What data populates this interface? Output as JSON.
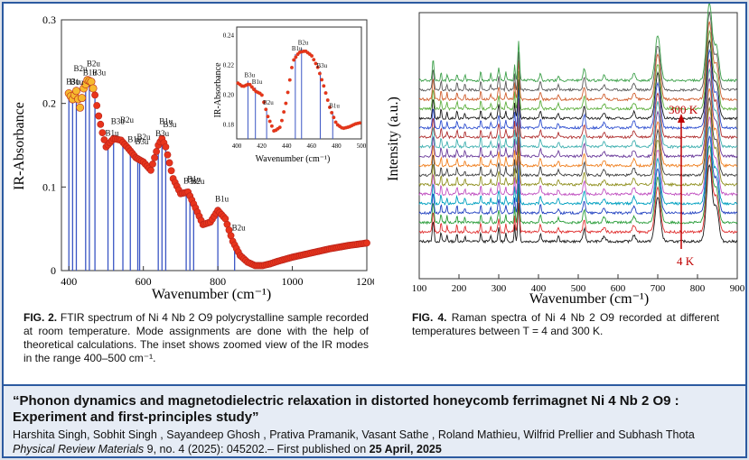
{
  "fig2": {
    "caption_label": "FIG. 2.",
    "caption_text": "FTIR spectrum of Ni 4 Nb 2 O9 polycrystalline sample recorded at room temperature. Mode assignments are done with the help of theoretical calculations. The inset shows zoomed view of the IR modes in the range 400–500 cm⁻¹.",
    "ylabel": "IR-Absorbance",
    "xlabel": "Wavenumber (cm⁻¹)",
    "yticks": [
      "0",
      "0.1",
      "0.2",
      "0.3"
    ],
    "xticks": [
      "400",
      "600",
      "800",
      "1000",
      "1200"
    ],
    "mode_labels": [
      "B3u",
      "B1u",
      "B2u",
      "B1u",
      "B2u",
      "B3u",
      "B1u",
      "B3u",
      "B2u",
      "B1u",
      "B3u",
      "B2u",
      "B3u",
      "B1u",
      "B3u",
      "B3u",
      "B1u",
      "B2u",
      "B1u",
      "B2u"
    ],
    "inset": {
      "ylabel": "IR-Absorbance",
      "xlabel": "Wavenumber (cm⁻¹)",
      "yticks": [
        "0.18",
        "0.20",
        "0.22",
        "0.24"
      ],
      "xticks": [
        "400",
        "420",
        "440",
        "460",
        "480",
        "500"
      ],
      "mode_labels": [
        "B3u",
        "B1u",
        "B2u",
        "B1u",
        "B2u",
        "B3u",
        "B1u"
      ]
    }
  },
  "fig4": {
    "caption_label": "FIG. 4.",
    "caption_text": "Raman spectra of Ni 4 Nb 2 O9 recorded at different temperatures between T = 4 and 300 K.",
    "ylabel": "Intensity (a.u.)",
    "xlabel": "Wavenumber (cm⁻¹)",
    "xticks": [
      "100",
      "200",
      "300",
      "400",
      "500",
      "600",
      "700",
      "800",
      "900"
    ],
    "label_high": "300 K",
    "label_low": "4 K"
  },
  "reference": {
    "title": "“Phonon dynamics and magnetodielectric relaxation in distorted honeycomb ferrimagnet Ni 4 Nb 2 O9 : Experiment and first-principles  study”",
    "authors": "Harshita Singh, Sobhit Singh , Sayandeep Ghosh , Prativa Pramanik, Vasant Sathe , Roland Mathieu, Wilfrid Prellier and Subhash Thota",
    "journal": "Physical Review  Materials",
    "citation": " 9, no. 4 (2025): 045202.– First published on ",
    "date": "25 April, 2025"
  },
  "colors": {
    "frame": "#2c5aa0",
    "ref_bg": "#e6ecf5",
    "ftir_marker": "#e8341c",
    "ftir_marker_light": "#f7b92f",
    "mode_line": "#3b56c4"
  },
  "chart_data": [
    {
      "type": "line",
      "title": "",
      "xlabel": "Wavenumber (cm⁻¹)",
      "ylabel": "IR-Absorbance",
      "xlim": [
        380,
        1200
      ],
      "ylim": [
        0,
        0.3
      ],
      "series": [
        {
          "x": [
            400,
            410,
            420,
            430,
            440,
            450,
            460,
            470,
            480,
            490,
            500,
            520,
            540,
            560,
            580,
            600,
            620,
            640,
            650,
            660,
            680,
            700,
            720,
            740,
            760,
            780,
            800,
            820,
            840,
            860,
            880,
            900,
            920,
            940,
            960,
            1000,
            1050,
            1100,
            1150,
            1200
          ],
          "values": [
            0.212,
            0.205,
            0.215,
            0.195,
            0.218,
            0.228,
            0.226,
            0.21,
            0.185,
            0.165,
            0.148,
            0.158,
            0.156,
            0.146,
            0.135,
            0.13,
            0.12,
            0.15,
            0.158,
            0.148,
            0.11,
            0.092,
            0.094,
            0.075,
            0.055,
            0.058,
            0.072,
            0.062,
            0.035,
            0.018,
            0.01,
            0.006,
            0.006,
            0.008,
            0.011,
            0.016,
            0.021,
            0.026,
            0.03,
            0.033
          ]
        }
      ],
      "mode_positions": [
        400,
        410,
        420,
        445,
        455,
        470,
        505,
        520,
        545,
        565,
        585,
        590,
        640,
        650,
        660,
        715,
        725,
        735,
        800,
        845
      ]
    },
    {
      "type": "line",
      "title": "",
      "xlabel": "Wavenumber (cm⁻¹)",
      "ylabel": "Intensity (a.u.)",
      "xlim": [
        100,
        900
      ],
      "temperatures": [
        "4 K",
        "300 K"
      ]
    }
  ]
}
